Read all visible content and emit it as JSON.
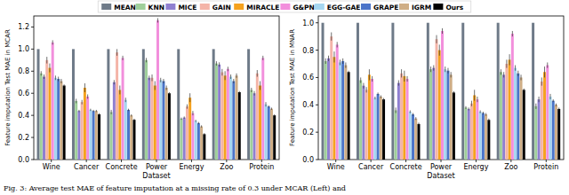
{
  "caption": "Fig. 3: Average test MAE of feature imputation at a missing rate of 0.3 under MCAR (Left) and",
  "chart_data": [
    {
      "type": "bar",
      "y_label": "Feature imputation Test MAE in MCAR",
      "x_label": "Dataset",
      "legend": "top",
      "grid": false,
      "categories": [
        "Wine",
        "Cancer",
        "Concrete",
        "Power",
        "Energy",
        "Zoo",
        "Protein"
      ],
      "ylim": [
        0,
        1.3
      ],
      "yticks": [
        {
          "value": 0,
          "label": "0.0"
        },
        {
          "value": 0.2,
          "label": "0.2"
        },
        {
          "value": 0.4,
          "label": "0.4"
        },
        {
          "value": 0.6,
          "label": "0.6"
        },
        {
          "value": 0.8,
          "label": "0.8"
        },
        {
          "value": 1.0,
          "label": "1.0"
        },
        {
          "value": 1.2,
          "label": "1.2"
        }
      ],
      "series": [
        {
          "name": "MEAN",
          "color": "#6e7a88",
          "values": [
            1.0,
            1.0,
            1.0,
            1.0,
            1.0,
            1.0,
            1.0
          ],
          "errors": [
            0.0,
            0.0,
            0.0,
            0.0,
            0.0,
            0.0,
            0.0
          ]
        },
        {
          "name": "KNN",
          "color": "#9fcf9a",
          "values": [
            0.78,
            0.53,
            0.43,
            0.9,
            0.37,
            0.87,
            0.63
          ],
          "errors": [
            0.02,
            0.02,
            0.02,
            0.02,
            0.01,
            0.02,
            0.02
          ]
        },
        {
          "name": "MICE",
          "color": "#8f7fd0",
          "values": [
            0.75,
            0.44,
            0.7,
            0.74,
            0.38,
            0.86,
            0.6
          ],
          "errors": [
            0.02,
            0.01,
            0.02,
            0.02,
            0.01,
            0.02,
            0.02
          ]
        },
        {
          "name": "GAIN",
          "color": "#f4b4a8",
          "values": [
            0.9,
            0.52,
            0.97,
            0.74,
            0.48,
            0.79,
            0.78
          ],
          "errors": [
            0.03,
            0.02,
            0.03,
            0.03,
            0.02,
            0.03,
            0.03
          ]
        },
        {
          "name": "MIRACLE",
          "color": "#f5a21e",
          "values": [
            0.83,
            0.65,
            0.63,
            0.67,
            0.56,
            0.76,
            0.67
          ],
          "errors": [
            0.04,
            0.04,
            0.04,
            0.04,
            0.04,
            0.04,
            0.04
          ]
        },
        {
          "name": "G&PN",
          "color": "#f28fdc",
          "values": [
            1.06,
            0.57,
            0.92,
            1.26,
            0.42,
            0.82,
            0.92
          ],
          "errors": [
            0.02,
            0.02,
            0.02,
            0.02,
            0.02,
            0.02,
            0.02
          ]
        },
        {
          "name": "EGG-GAE",
          "color": "#a6d6f0",
          "values": [
            0.74,
            0.45,
            0.54,
            0.72,
            0.35,
            0.75,
            0.5
          ],
          "errors": [
            0.02,
            0.01,
            0.02,
            0.02,
            0.01,
            0.02,
            0.02
          ]
        },
        {
          "name": "GRAPE",
          "color": "#4a74c9",
          "values": [
            0.73,
            0.44,
            0.45,
            0.71,
            0.33,
            0.71,
            0.48
          ],
          "errors": [
            0.02,
            0.01,
            0.01,
            0.02,
            0.01,
            0.02,
            0.01
          ]
        },
        {
          "name": "IGRM",
          "color": "#cfae86",
          "values": [
            0.71,
            0.44,
            0.4,
            0.65,
            0.3,
            0.76,
            0.46
          ],
          "errors": [
            0.02,
            0.01,
            0.01,
            0.02,
            0.01,
            0.02,
            0.01
          ]
        },
        {
          "name": "Ours",
          "color": "#000000",
          "values": [
            0.67,
            0.41,
            0.36,
            0.6,
            0.23,
            0.61,
            0.4
          ],
          "errors": [
            0.01,
            0.01,
            0.01,
            0.01,
            0.01,
            0.01,
            0.01
          ]
        }
      ]
    },
    {
      "type": "bar",
      "y_label": "Feature imputation Test MAE in MNAR",
      "x_label": "Dataset",
      "grid": false,
      "categories": [
        "Wine",
        "Cancer",
        "Concrete",
        "Power",
        "Energy",
        "Zoo",
        "Protein"
      ],
      "ylim": [
        0,
        1.05
      ],
      "yticks": [
        {
          "value": 0,
          "label": "0.0"
        },
        {
          "value": 0.2,
          "label": "0.2"
        },
        {
          "value": 0.4,
          "label": "0.4"
        },
        {
          "value": 0.6,
          "label": "0.6"
        },
        {
          "value": 0.8,
          "label": "0.8"
        },
        {
          "value": 1.0,
          "label": "1.0"
        }
      ],
      "series": [
        {
          "name": "MEAN",
          "color": "#6e7a88",
          "values": [
            1.0,
            1.0,
            1.0,
            1.0,
            1.0,
            1.0,
            1.0
          ],
          "errors": [
            0.0,
            0.0,
            0.0,
            0.0,
            0.0,
            0.0,
            0.0
          ]
        },
        {
          "name": "KNN",
          "color": "#9fcf9a",
          "values": [
            0.72,
            0.58,
            0.36,
            0.66,
            0.38,
            0.64,
            0.39
          ],
          "errors": [
            0.02,
            0.02,
            0.02,
            0.02,
            0.01,
            0.02,
            0.02
          ]
        },
        {
          "name": "MICE",
          "color": "#8f7fd0",
          "values": [
            0.74,
            0.54,
            0.56,
            0.67,
            0.37,
            0.62,
            0.44
          ],
          "errors": [
            0.02,
            0.02,
            0.02,
            0.02,
            0.01,
            0.02,
            0.02
          ]
        },
        {
          "name": "GAIN",
          "color": "#f4b4a8",
          "values": [
            0.9,
            0.51,
            0.63,
            0.88,
            0.41,
            0.7,
            0.57
          ],
          "errors": [
            0.03,
            0.02,
            0.03,
            0.03,
            0.02,
            0.03,
            0.03
          ]
        },
        {
          "name": "MIRACLE",
          "color": "#f5a21e",
          "values": [
            0.75,
            0.62,
            0.61,
            0.8,
            0.47,
            0.73,
            0.64
          ],
          "errors": [
            0.04,
            0.04,
            0.04,
            0.04,
            0.04,
            0.04,
            0.04
          ]
        },
        {
          "name": "G&PN",
          "color": "#f28fdc",
          "values": [
            0.84,
            0.59,
            0.59,
            0.94,
            0.44,
            0.92,
            0.69
          ],
          "errors": [
            0.02,
            0.02,
            0.02,
            0.02,
            0.02,
            0.02,
            0.02
          ]
        },
        {
          "name": "EGG-GAE",
          "color": "#a6d6f0",
          "values": [
            0.71,
            0.45,
            0.35,
            0.66,
            0.35,
            0.67,
            0.46
          ],
          "errors": [
            0.02,
            0.01,
            0.01,
            0.02,
            0.01,
            0.02,
            0.02
          ]
        },
        {
          "name": "GRAPE",
          "color": "#4a74c9",
          "values": [
            0.72,
            0.48,
            0.33,
            0.65,
            0.34,
            0.63,
            0.43
          ],
          "errors": [
            0.02,
            0.01,
            0.01,
            0.02,
            0.01,
            0.02,
            0.01
          ]
        },
        {
          "name": "IGRM",
          "color": "#cfae86",
          "values": [
            0.69,
            0.46,
            0.3,
            0.62,
            0.33,
            0.6,
            0.4
          ],
          "errors": [
            0.02,
            0.01,
            0.01,
            0.02,
            0.01,
            0.02,
            0.01
          ]
        },
        {
          "name": "Ours",
          "color": "#000000",
          "values": [
            0.64,
            0.44,
            0.26,
            0.49,
            0.29,
            0.51,
            0.37
          ],
          "errors": [
            0.01,
            0.01,
            0.01,
            0.01,
            0.01,
            0.01,
            0.01
          ]
        }
      ]
    }
  ]
}
